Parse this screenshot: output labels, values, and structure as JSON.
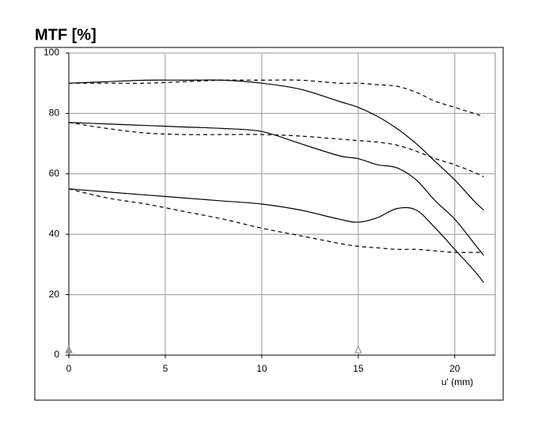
{
  "chart_data": {
    "type": "line",
    "title": "MTF [%]",
    "x_label": "u' (mm)",
    "x": [
      0,
      2,
      4,
      6,
      8,
      10,
      12,
      14,
      15,
      16,
      17,
      18,
      19,
      20,
      21,
      21.5
    ],
    "series": [
      {
        "color": "#000000",
        "dashed": false,
        "values": [
          90,
          90.5,
          91,
          91,
          91,
          90,
          88,
          84,
          82,
          79,
          75,
          70,
          64,
          58,
          51,
          48
        ]
      },
      {
        "color": "#000000",
        "dashed": true,
        "values": [
          90,
          90,
          90,
          90.5,
          91,
          91,
          91,
          90,
          90,
          89.5,
          89,
          87,
          84,
          82,
          80,
          79
        ]
      },
      {
        "color": "#000000",
        "dashed": false,
        "values": [
          77,
          76.5,
          76,
          75.5,
          75,
          74,
          70,
          66,
          65,
          63,
          62,
          58,
          51,
          45,
          37,
          33
        ]
      },
      {
        "color": "#000000",
        "dashed": true,
        "values": [
          77,
          75,
          73.5,
          73,
          73,
          73,
          72.5,
          71.5,
          71,
          70.5,
          69.5,
          67.5,
          65,
          63,
          60.5,
          59
        ]
      },
      {
        "color": "#000000",
        "dashed": false,
        "values": [
          55,
          54,
          53,
          52,
          51,
          50,
          48,
          45,
          44,
          45.5,
          48.5,
          48,
          42,
          35,
          28,
          24
        ]
      },
      {
        "color": "#000000",
        "dashed": true,
        "values": [
          55,
          52,
          50,
          47.5,
          45,
          42,
          39.5,
          37,
          36,
          35.5,
          35,
          35,
          34.5,
          34,
          34,
          34
        ]
      }
    ],
    "markers": [
      0,
      15
    ],
    "xlim": [
      0,
      22.1
    ],
    "ylim": [
      0,
      100
    ],
    "xticks": [
      0,
      5,
      10,
      15,
      20
    ],
    "yticks": [
      0,
      20,
      40,
      60,
      80,
      100
    ],
    "grid": true
  }
}
